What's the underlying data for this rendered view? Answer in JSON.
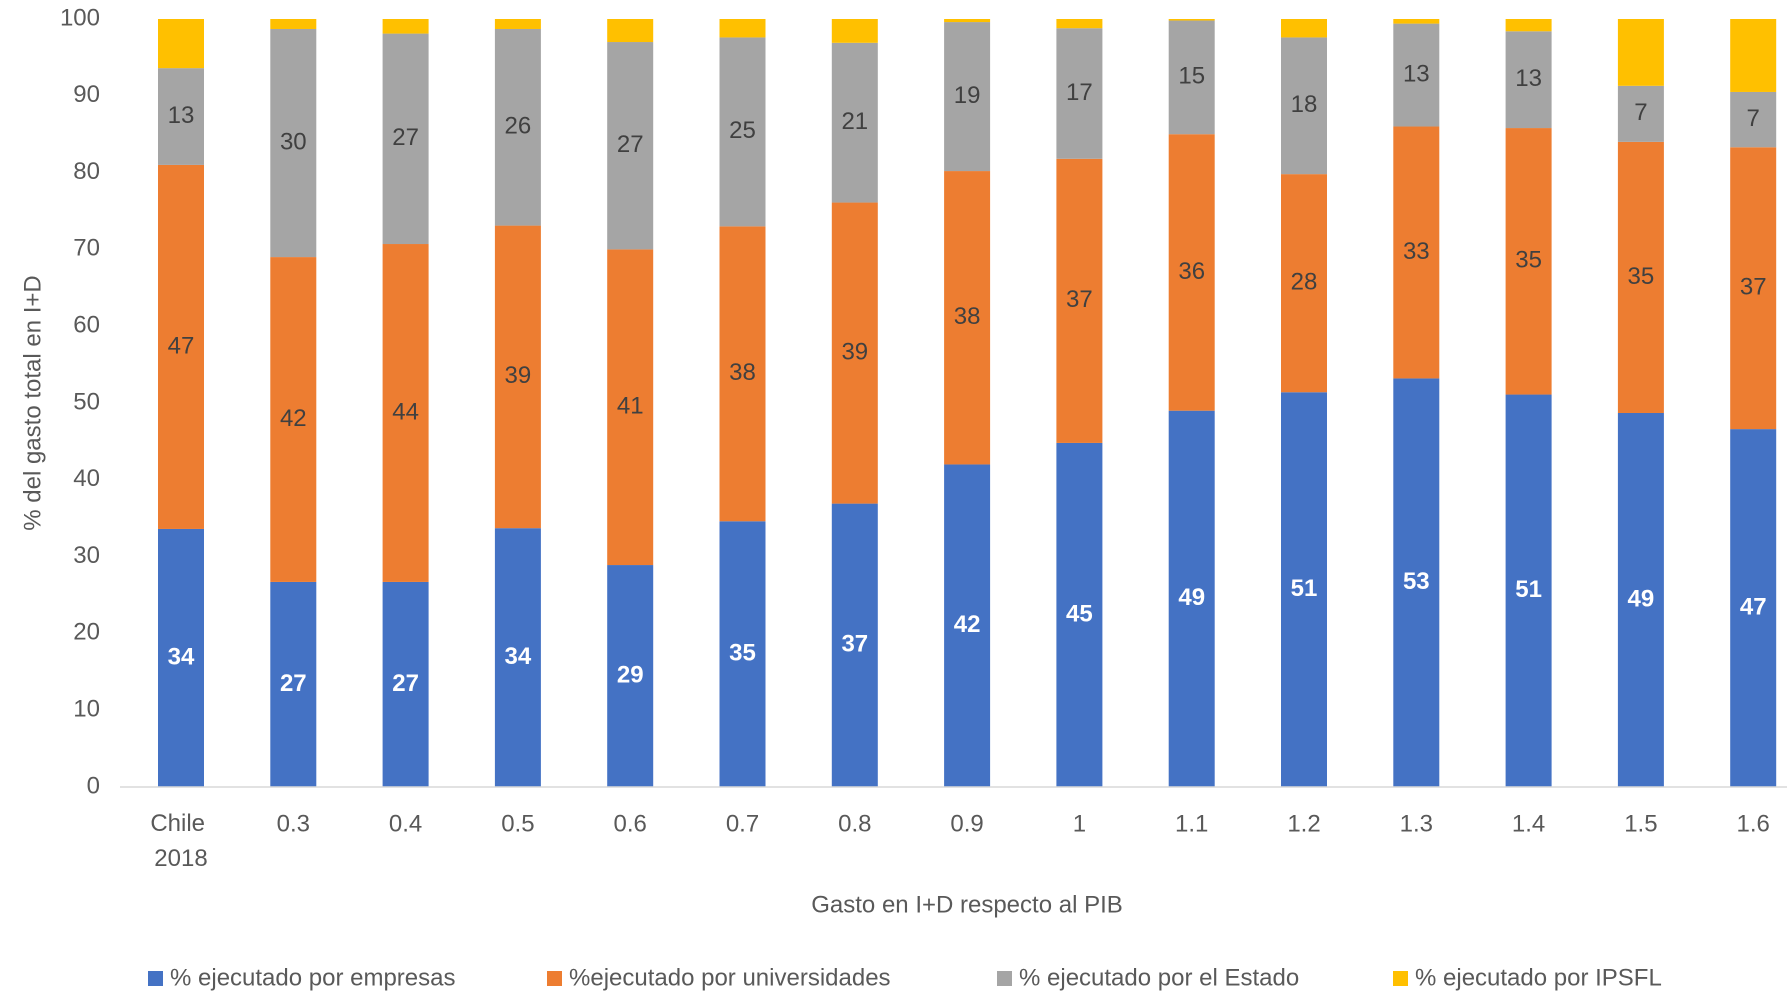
{
  "chart_data": {
    "type": "stacked_bar",
    "x_label": "Gasto en I+D respecto al PIB",
    "y_label": "% del gasto total en I+D",
    "categories": [
      "Chile 2018",
      "0.3",
      "0.4",
      "0.5",
      "0.6",
      "0.7",
      "0.8",
      "0.9",
      "1",
      "1.1",
      "1.2",
      "1.3",
      "1.4",
      "1.5",
      "1.6"
    ],
    "ylim": [
      0,
      100
    ],
    "yticks": [
      0,
      10,
      20,
      30,
      40,
      50,
      60,
      70,
      80,
      90,
      100
    ],
    "grid": false,
    "legend": "bottom",
    "series": [
      {
        "name": "% ejecutado por empresas",
        "color": "#4472c4",
        "values": [
          33.6,
          26.7,
          26.7,
          33.7,
          28.9,
          34.6,
          36.9,
          42,
          44.8,
          49,
          51.4,
          53.2,
          51.1,
          48.7,
          46.6
        ],
        "value_labels": [
          "34",
          "27",
          "27",
          "34",
          "29",
          "35",
          "37",
          "42",
          "45",
          "49",
          "51",
          "53",
          "51",
          "49",
          "47"
        ]
      },
      {
        "name": "%ejecutado por universidades",
        "color": "#ed7d31",
        "values": [
          47.4,
          42.3,
          44,
          39.4,
          41.1,
          38.4,
          39.2,
          38.2,
          37,
          36,
          28.4,
          32.8,
          34.7,
          35.3,
          36.7
        ],
        "value_labels": [
          "47",
          "42",
          "44",
          "39",
          "41",
          "38",
          "39",
          "38",
          "37",
          "36",
          "28",
          "33",
          "35",
          "35",
          "37"
        ]
      },
      {
        "name": "% ejecutado por el Estado",
        "color": "#a5a5a5",
        "values": [
          12.6,
          29.7,
          27.4,
          25.6,
          27,
          24.6,
          20.8,
          19.4,
          17,
          14.8,
          17.8,
          13.4,
          12.6,
          7.3,
          7.2
        ],
        "value_labels": [
          "13",
          "30",
          "27",
          "26",
          "27",
          "25",
          "21",
          "19",
          "17",
          "15",
          "18",
          "13",
          "13",
          "7",
          "7"
        ]
      },
      {
        "name": "% ejecutado por IPSFL",
        "color": "#ffc000",
        "values": [
          6.4,
          1.3,
          1.9,
          1.3,
          3,
          2.4,
          3.1,
          0.4,
          1.2,
          0.2,
          2.4,
          0.6,
          1.6,
          8.7,
          9.5
        ]
      }
    ]
  }
}
